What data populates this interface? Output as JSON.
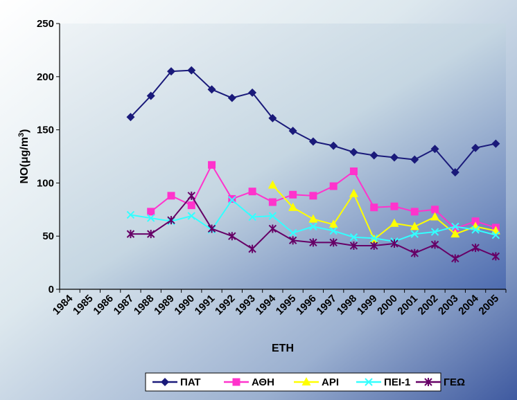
{
  "chart_data": {
    "type": "line",
    "xlabel": "ETH",
    "ylabel": "NO(μg/m",
    "ylabel_sup": "3",
    "ylabel_end": ")",
    "ylim": [
      0,
      250
    ],
    "yticks": [
      0,
      50,
      100,
      150,
      200,
      250
    ],
    "grid": false,
    "legend_position": "bottom",
    "categories": [
      "1984",
      "1985",
      "1986",
      "1987",
      "1988",
      "1989",
      "1990",
      "1991",
      "1992",
      "1993",
      "1994",
      "1995",
      "1996",
      "1997",
      "1998",
      "1999",
      "2000",
      "2001",
      "2002",
      "2003",
      "2004",
      "2005"
    ],
    "series": [
      {
        "name": "ΠΑΤ",
        "color": "#1a1a7a",
        "marker": "diamond",
        "values": [
          null,
          null,
          null,
          162,
          182,
          205,
          206,
          188,
          180,
          185,
          161,
          149,
          139,
          135,
          129,
          126,
          124,
          122,
          132,
          110,
          133,
          137
        ]
      },
      {
        "name": "ΑΘΗ",
        "color": "#ff33cc",
        "marker": "square",
        "values": [
          null,
          null,
          null,
          null,
          73,
          88,
          79,
          117,
          85,
          92,
          82,
          89,
          88,
          97,
          111,
          77,
          78,
          73,
          75,
          57,
          64,
          58
        ]
      },
      {
        "name": "ΑΡΙ",
        "color": "#ffff00",
        "marker": "triangle",
        "values": [
          null,
          null,
          null,
          null,
          null,
          null,
          null,
          null,
          null,
          null,
          98,
          77,
          66,
          61,
          90,
          47,
          62,
          59,
          68,
          52,
          59,
          55
        ]
      },
      {
        "name": "ΠΕΙ-1",
        "color": "#33ffff",
        "marker": "x",
        "values": [
          null,
          null,
          null,
          70,
          67,
          64,
          69,
          56,
          84,
          68,
          69,
          53,
          59,
          55,
          49,
          48,
          45,
          52,
          54,
          59,
          56,
          51
        ]
      },
      {
        "name": "ΓΕΩ",
        "color": "#660066",
        "marker": "star",
        "values": [
          null,
          null,
          null,
          52,
          52,
          65,
          88,
          57,
          50,
          38,
          57,
          46,
          44,
          44,
          41,
          41,
          43,
          34,
          42,
          29,
          39,
          31
        ]
      }
    ]
  }
}
